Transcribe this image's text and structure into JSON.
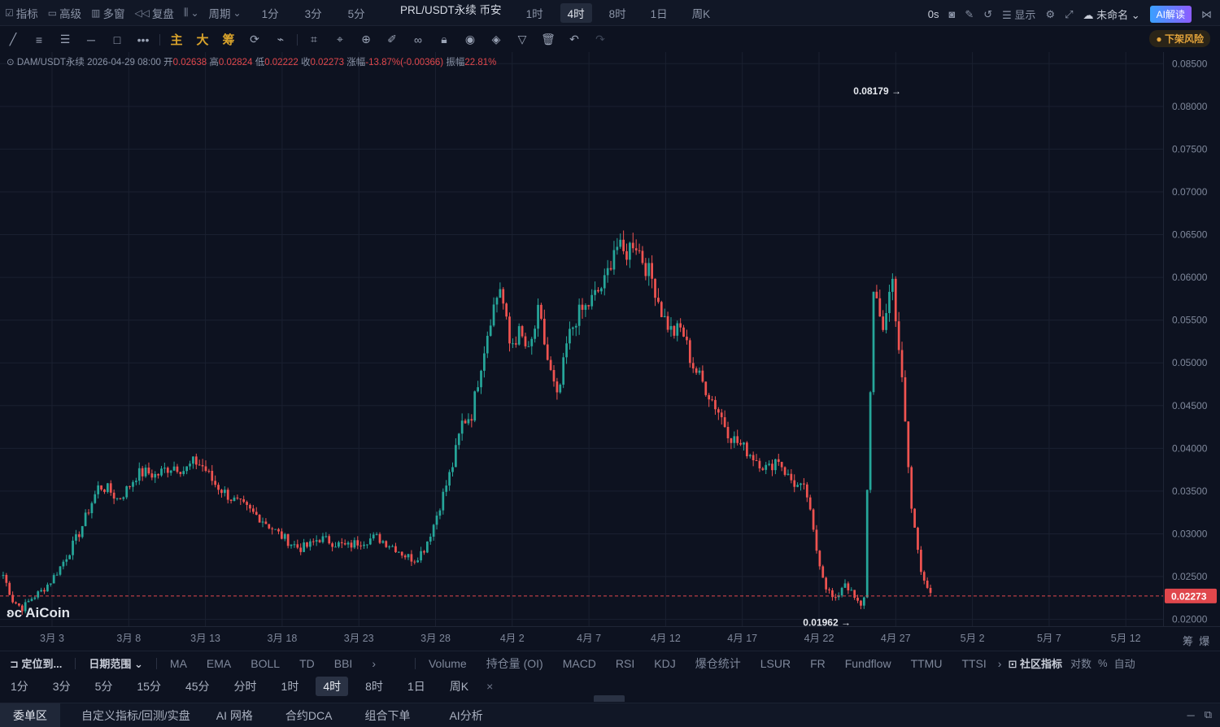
{
  "top_toolbar": {
    "indicators": "指标",
    "advanced": "高级",
    "multi_window": "多窗",
    "replay": "复盘",
    "period": "周期",
    "timeframes": [
      "1分",
      "3分",
      "5分"
    ],
    "pair_title": "PRL/USDT永续 币安",
    "timeframes2": [
      "1时",
      "4时",
      "8时",
      "1日",
      "周K"
    ],
    "active_timeframe": "4时",
    "countdown": "0s",
    "display": "显示",
    "unnamed": "未命名",
    "ai_read": "AI解读"
  },
  "draw_toolbar": {
    "main": "主",
    "big": "大",
    "chip": "筹",
    "delist_risk": "下架风险"
  },
  "ohlc": {
    "symbol": "DAM/USDT永续",
    "datetime": "2026-04-29 08:00",
    "open_label": "开",
    "open": "0.02638",
    "high_label": "高",
    "high": "0.02824",
    "low_label": "低",
    "low": "0.02222",
    "close_label": "收",
    "close": "0.02273",
    "change_label": "涨幅",
    "change": "-13.87%(-0.00366)",
    "amp_label": "振幅",
    "amp": "22.81%"
  },
  "chart_data": {
    "type": "candlestick",
    "x_ticks": [
      "3月 3",
      "3月 8",
      "3月 13",
      "3月 18",
      "3月 23",
      "3月 28",
      "4月 2",
      "4月 7",
      "4月 12",
      "4月 17",
      "4月 22",
      "4月 27",
      "5月 2",
      "5月 7",
      "5月 12"
    ],
    "y_ticks": [
      "0.08500",
      "0.08000",
      "0.07500",
      "0.07000",
      "0.06500",
      "0.06000",
      "0.05500",
      "0.05000",
      "0.04500",
      "0.04000",
      "0.03500",
      "0.03000",
      "0.02500",
      "0.02000"
    ],
    "ylim": [
      0.0192,
      0.0856
    ],
    "current_price": "0.02273",
    "high_marker": "0.08179",
    "low_marker": "0.01962",
    "series_close": [
      0.0252,
      0.0222,
      0.0213,
      0.0225,
      0.0233,
      0.0245,
      0.0262,
      0.0281,
      0.0302,
      0.033,
      0.0356,
      0.0352,
      0.034,
      0.0353,
      0.037,
      0.0372,
      0.0368,
      0.0376,
      0.038,
      0.0374,
      0.0385,
      0.0378,
      0.036,
      0.035,
      0.034,
      0.0333,
      0.0325,
      0.0318,
      0.0308,
      0.0298,
      0.029,
      0.0283,
      0.0286,
      0.0295,
      0.0292,
      0.0288,
      0.0285,
      0.029,
      0.0293,
      0.0296,
      0.029,
      0.0284,
      0.0275,
      0.027,
      0.0282,
      0.031,
      0.0345,
      0.038,
      0.043,
      0.044,
      0.05,
      0.0555,
      0.059,
      0.052,
      0.0535,
      0.051,
      0.056,
      0.05,
      0.0455,
      0.0525,
      0.0555,
      0.0565,
      0.058,
      0.0595,
      0.064,
      0.0625,
      0.0645,
      0.0618,
      0.0595,
      0.0555,
      0.0535,
      0.054,
      0.05,
      0.048,
      0.046,
      0.044,
      0.0415,
      0.0405,
      0.0395,
      0.0385,
      0.0375,
      0.039,
      0.0368,
      0.0356,
      0.035,
      0.0285,
      0.024,
      0.022,
      0.0245,
      0.0225,
      0.021,
      0.058,
      0.054,
      0.06,
      0.048,
      0.033,
      0.026,
      0.0227
    ],
    "candle_count": 98
  },
  "indicator_bar": {
    "locate": "定位到...",
    "date_range": "日期范围",
    "items": [
      "MA",
      "EMA",
      "BOLL",
      "TD",
      "BBI"
    ],
    "items2": [
      "Volume",
      "持仓量 (OI)",
      "MACD",
      "RSI",
      "KDJ",
      "爆仓统计",
      "LSUR",
      "FR",
      "Fundflow",
      "TTMU",
      "TTSI"
    ],
    "community": "社区指标",
    "log": "对数",
    "percent": "%",
    "auto": "自动"
  },
  "tf_row": {
    "items": [
      "1分",
      "3分",
      "5分",
      "15分",
      "45分",
      "分时",
      "1时",
      "4时",
      "8时",
      "1日",
      "周K"
    ],
    "active": "4时",
    "close": "×"
  },
  "tabs": {
    "items": [
      "委单区",
      "自定义指标/回测/实盘",
      "AI 网格",
      "合约DCA",
      "组合下单",
      "AI分析"
    ],
    "active": "委单区"
  },
  "corner": {
    "a": "筹",
    "b": "爆"
  },
  "watermark": "AiCoin",
  "colors": {
    "up": "#26a69a",
    "down": "#ef5350",
    "bg": "#0d1220",
    "price_tag": "#e0474c"
  }
}
